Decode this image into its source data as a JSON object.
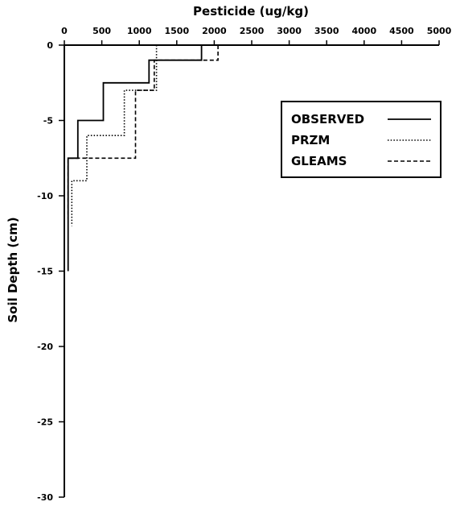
{
  "chart_data": {
    "type": "line",
    "title": "",
    "xlabel": "Pesticide (ug/kg)",
    "ylabel": "Soil Depth (cm)",
    "xlim": [
      0,
      5000
    ],
    "ylim": [
      -30,
      0
    ],
    "x_ticks": [
      0,
      500,
      1000,
      1500,
      2000,
      2500,
      3000,
      3500,
      4000,
      4500,
      5000
    ],
    "x_tick_labels": [
      "0",
      "500",
      "1000",
      "1500",
      "2000",
      "2500",
      "3000",
      "3500",
      "4000",
      "4500",
      "5000"
    ],
    "y_ticks": [
      0,
      -5,
      -10,
      -15,
      -20,
      -25,
      -30
    ],
    "y_tick_labels": [
      "0",
      "-5",
      "-10",
      "-15",
      "-20",
      "-25",
      "-30"
    ],
    "x_axis_position": "top",
    "grid": false,
    "legend_position": "top-right",
    "series": [
      {
        "name": "OBSERVED",
        "style": "solid",
        "x": [
          1830,
          1830,
          1130,
          1130,
          520,
          520,
          180,
          180,
          50,
          50
        ],
        "y": [
          0,
          -1,
          -1,
          -2.5,
          -2.5,
          -5,
          -5,
          -7.5,
          -7.5,
          -15
        ]
      },
      {
        "name": "PRZM",
        "style": "dotted",
        "x": [
          1230,
          1230,
          800,
          800,
          300,
          300,
          100,
          100
        ],
        "y": [
          0,
          -3,
          -3,
          -6,
          -6,
          -9,
          -9,
          -12
        ]
      },
      {
        "name": "GLEAMS",
        "style": "dashed",
        "x": [
          2050,
          2050,
          1200,
          1200,
          950,
          950,
          50,
          50
        ],
        "y": [
          0,
          -1,
          -1,
          -3,
          -3,
          -7.5,
          -7.5,
          -11.5
        ]
      }
    ]
  }
}
